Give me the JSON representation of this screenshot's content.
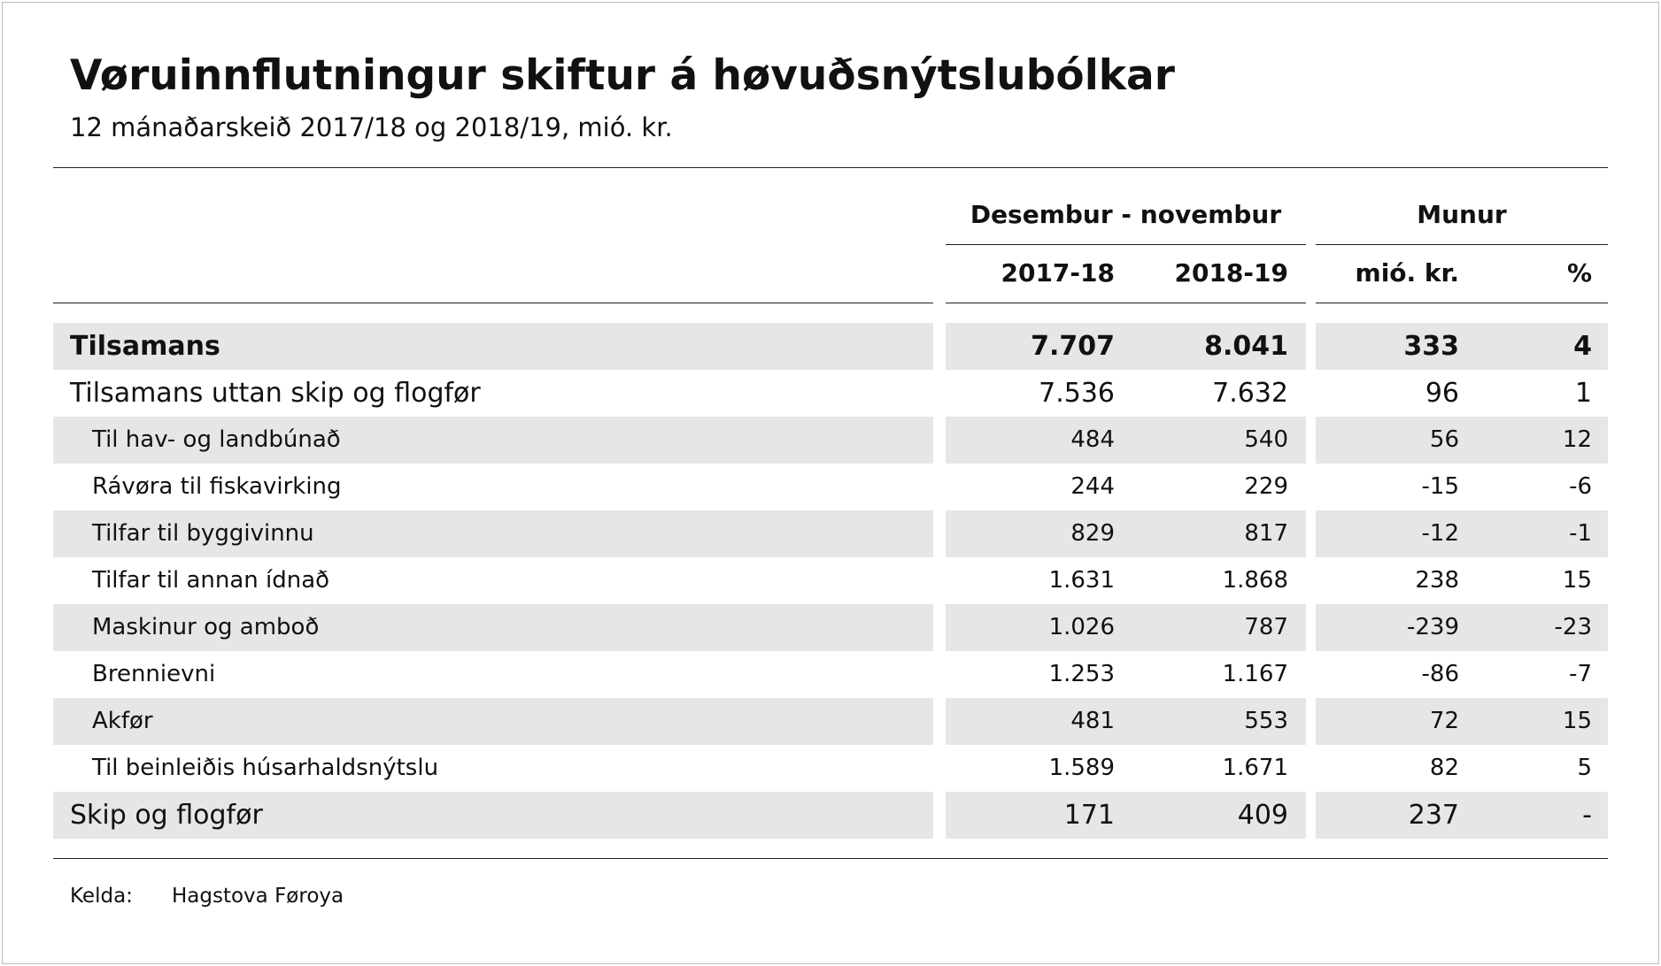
{
  "header": {
    "title": "Vøruinnflutningur skiftur á høvuðsnýtslubólkar",
    "subtitle": "12 mánaðarskeið 2017/18 og 2018/19, mió. kr."
  },
  "table": {
    "group_headers": [
      "Desembur - novembur",
      "Munur"
    ],
    "columns": [
      "2017-18",
      "2018-19",
      "mió. kr.",
      "%"
    ],
    "rows": [
      [
        "Tilsamans",
        "7.707",
        "8.041",
        "333",
        "4"
      ],
      [
        "Tilsamans uttan skip og flogfør",
        "7.536",
        "7.632",
        "96",
        "1"
      ],
      [
        "Til hav- og landbúnað",
        "484",
        "540",
        "56",
        "12"
      ],
      [
        "Rávøra til fiskavirking",
        "244",
        "229",
        "-15",
        "-6"
      ],
      [
        "Tilfar til byggivinnu",
        "829",
        "817",
        "-12",
        "-1"
      ],
      [
        "Tilfar til annan ídnað",
        "1.631",
        "1.868",
        "238",
        "15"
      ],
      [
        "Maskinur og amboð",
        "1.026",
        "787",
        "-239",
        "-23"
      ],
      [
        "Brennievni",
        "1.253",
        "1.167",
        "-86",
        "-7"
      ],
      [
        "Akfør",
        "481",
        "553",
        "72",
        "15"
      ],
      [
        "Til beinleiðis húsarhaldsnýtslu",
        "1.589",
        "1.671",
        "82",
        "5"
      ],
      [
        "Skip og flogfør",
        "171",
        "409",
        "237",
        "-"
      ]
    ]
  },
  "footer": {
    "source_label": "Kelda:",
    "source": "Hagstova Føroya"
  }
}
